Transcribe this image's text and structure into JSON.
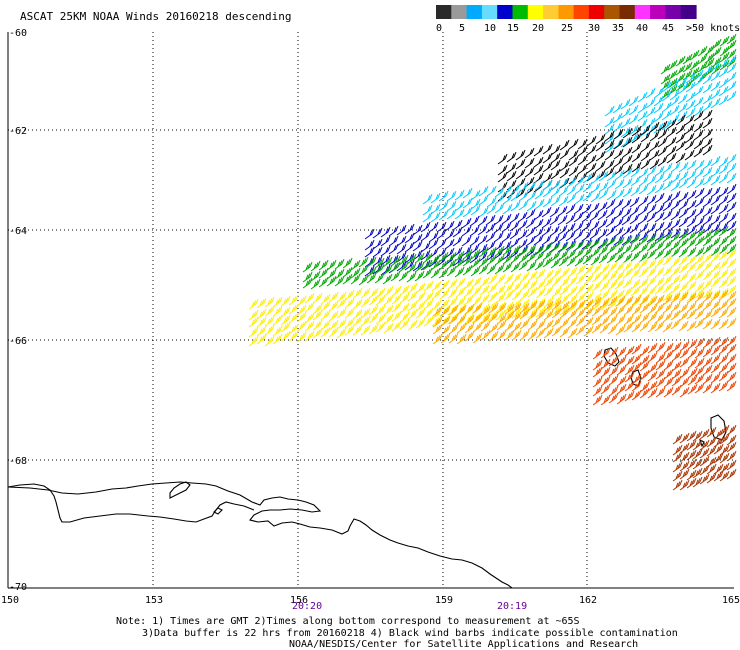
{
  "title": "ASCAT 25KM NOAA Winds 20160218 descending",
  "legend": {
    "labels": [
      "0",
      "5",
      "10",
      "15",
      "20",
      "25",
      "30",
      "35",
      "40",
      "45",
      ">50 knots"
    ],
    "colors": [
      "#2a2a2a",
      "#9a9a9a",
      "#00aaff",
      "#66ddff",
      "#0000cc",
      "#00bb00",
      "#ffff00",
      "#ffcc33",
      "#ff9900",
      "#ff4400",
      "#ee0000",
      "#aa5500",
      "#7a2a00",
      "#ff33ff",
      "#bb00bb",
      "#7700aa",
      "#440088"
    ]
  },
  "lat_labels": [
    "-60",
    "-62",
    "-64",
    "-66",
    "-68",
    "-70"
  ],
  "lon_labels": [
    "150",
    "153",
    "156",
    "159",
    "162",
    "165"
  ],
  "times": [
    {
      "label": "20:20",
      "color": "#660099"
    },
    {
      "label": "20:19",
      "color": "#660099"
    }
  ],
  "notes": [
    "Note: 1) Times are GMT 2)Times along bottom correspond to measurement at ~65S",
    "3)Data buffer is 22 hrs from 20160218 4) Black wind barbs indicate possible contamination",
    "NOAA/NESDIS/Center for Satellite Applications and Research"
  ],
  "barb_colors": {
    "contaminated": "#000000",
    "speed_5_10": "#00ccff",
    "speed_10_15": "#0000cc",
    "speed_15_20": "#00aa00",
    "speed_20_25": "#ffee00",
    "speed_25_30": "#ffaa00",
    "speed_30_35": "#ee4400",
    "speed_35_40": "#aa3300"
  }
}
